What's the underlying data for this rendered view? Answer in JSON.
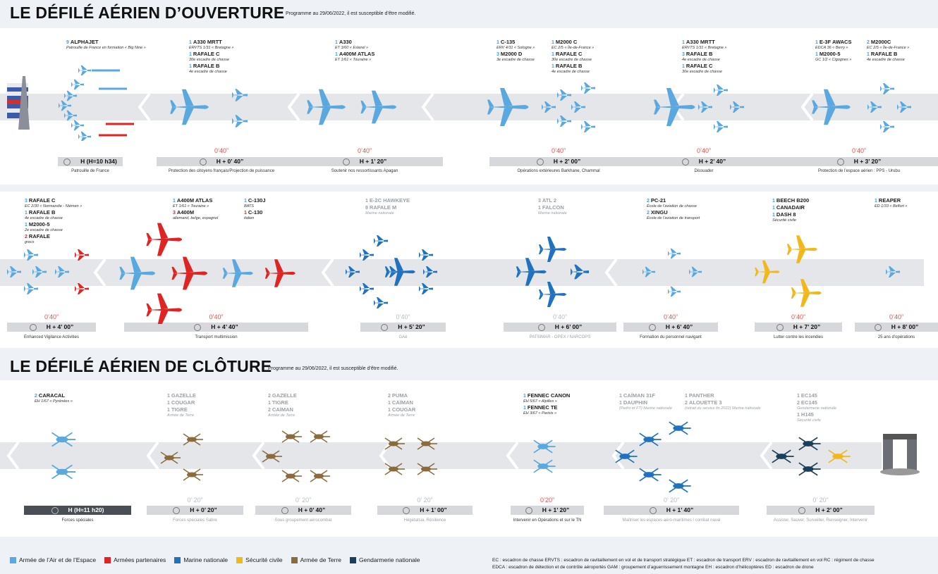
{
  "opening": {
    "title": "LE DÉFILÉ AÉRIEN D’OUVERTURE",
    "note": "Programme au 29/06/2022, il est susceptible d’être modifié."
  },
  "closing": {
    "title": "LE DÉFILÉ AÉRIEN DE CLÔTURE",
    "note": "Programme au 29/06/2022, il est susceptible d’être modifié."
  },
  "colors": {
    "air": "#5aa8e0",
    "partners": "#e02424",
    "navy": "#1f72c0",
    "civil": "#f2b71a",
    "army": "#8b6b3e",
    "gendarmerie": "#1c3e58"
  },
  "row1": [
    {
      "items": [
        {
          "n": "9",
          "name": "ALPHAJET",
          "sub": "Patrouille de France en formation « Big Nine »"
        }
      ],
      "timer": "",
      "h": "H (H=10 h34)",
      "caption": "Patrouille de France",
      "dark": false
    },
    {
      "items": [
        {
          "n": "1",
          "name": "A330 MRTT",
          "sub": "ERVTS 1/31 « Bretagne »"
        },
        {
          "n": "1",
          "name": "RAFALE C",
          "sub": "30e escadre de chasse"
        },
        {
          "n": "1",
          "name": "RAFALE B",
          "sub": "4e escadre de chasse"
        }
      ],
      "timer": "0’40”",
      "h": "H + 0’ 40”",
      "caption": "Protection des citoyens français/Projection de puissance"
    },
    {
      "items": [
        {
          "n": "1",
          "name": "A330",
          "sub": "ET 3/60 « Esterel »"
        },
        {
          "n": "1",
          "name": "A400M ATLAS",
          "sub": "ET 1/61 « Touraine »"
        }
      ],
      "timer": "0’40”",
      "h": "H + 1’ 20”",
      "caption": "Soutenir nos ressortissants Apagan"
    },
    {
      "items": [
        {
          "n": "1",
          "name": "C-135",
          "sub": "ERV 4/31 « Sologne »"
        },
        {
          "n": "3",
          "name": "M2000 D",
          "sub": "3e escadre de chasse"
        }
      ],
      "items2": [
        {
          "n": "1",
          "name": "M2000 C",
          "sub": "EC 2/5 « Île-de-France »"
        },
        {
          "n": "1",
          "name": "RAFALE C",
          "sub": "30e escadre de chasse"
        },
        {
          "n": "1",
          "name": "RAFALE B",
          "sub": "4e escadre de chasse"
        }
      ],
      "timer": "0’40”",
      "h": "H + 2’ 00”",
      "caption": "Opérations extérieures Barkhane, Chammal"
    },
    {
      "items": [
        {
          "n": "1",
          "name": "A330 MRTT",
          "sub": "ERVTS 1/31 « Bretagne »"
        },
        {
          "n": "3",
          "name": "RAFALE B",
          "sub": "4e escadre de chasse"
        },
        {
          "n": "1",
          "name": "RAFALE C",
          "sub": "30e escadre de chasse"
        }
      ],
      "timer": "0’40”",
      "h": "H + 2’ 40”",
      "caption": "Dissuader"
    },
    {
      "items": [
        {
          "n": "1",
          "name": "E-3F AWACS",
          "sub": "EDCA 36 « Berry »"
        },
        {
          "n": "1",
          "name": "M2000-5",
          "sub": "GC 1/2 « Cigognes »"
        }
      ],
      "items2": [
        {
          "n": "2",
          "name": "M2000C",
          "sub": "EC 2/5 « Île-de-France »"
        },
        {
          "n": "1",
          "name": "RAFALE B",
          "sub": "4e escadre de chasse"
        }
      ],
      "timer": "0’40”",
      "h": "H + 3’ 20”",
      "caption": "Protection de l’espace aérien : PPS - Urubu"
    }
  ],
  "row2": [
    {
      "items": [
        {
          "n": "3",
          "name": "RAFALE C",
          "sub": "EC 2/30 « Normandie - Niémen »"
        },
        {
          "n": "1",
          "name": "RAFALE B",
          "sub": "4e escadre de chasse"
        },
        {
          "n": "1",
          "name": "M2000-5",
          "sub": "2e escadre de chasse"
        },
        {
          "n": "2",
          "name": "RAFALE",
          "sub": "grecs",
          "red": true
        }
      ],
      "timer": "0’40”",
      "h": "H + 4’ 00”",
      "caption": "Enhanced Vigilance Activities"
    },
    {
      "items": [
        {
          "n": "1",
          "name": "A400M ATLAS",
          "sub": "ET 1/61 « Touraine »"
        },
        {
          "n": "3",
          "name": "A400M",
          "sub": "allemand, belge, espagnol",
          "red": true
        }
      ],
      "items2": [
        {
          "n": "1",
          "name": "C-130J",
          "sub": "BATS"
        },
        {
          "n": "1",
          "name": "C-130",
          "sub": "italien",
          "red": true
        }
      ],
      "timer": "0’40”",
      "h": "H + 4’ 40”",
      "caption": "Transport multimission"
    },
    {
      "items": [
        {
          "n": "1",
          "name": "E-2C HAWKEYE",
          "sub": ""
        },
        {
          "n": "8",
          "name": "RAFALE M",
          "sub": "Marine nationale"
        }
      ],
      "timer": "0’40”",
      "h": "H + 5’ 20”",
      "caption": "GAé",
      "dim": true
    },
    {
      "items": [
        {
          "n": "3",
          "name": "ATL 2",
          "sub": ""
        },
        {
          "n": "1",
          "name": "FALCON",
          "sub": "Marine nationale"
        }
      ],
      "timer": "0’40”",
      "h": "H + 6’ 00”",
      "caption": "PATSIMAR - OPEX / NARCOPS",
      "dim": true
    },
    {
      "items": [
        {
          "n": "2",
          "name": "PC-21",
          "sub": "École de l’aviation de chasse"
        },
        {
          "n": "2",
          "name": "XINGU",
          "sub": "École de l’aviation de transport"
        }
      ],
      "timer": "0’40”",
      "h": "H + 6’ 40”",
      "caption": "Formation du personnel navigant"
    },
    {
      "items": [
        {
          "n": "1",
          "name": "BEECH B200",
          "sub": ""
        },
        {
          "n": "1",
          "name": "CANADAIR",
          "sub": ""
        },
        {
          "n": "1",
          "name": "DASH 8",
          "sub": "Sécurité civile"
        }
      ],
      "timer": "0’40”",
      "h": "H + 7’ 20”",
      "caption": "Lutter contre les incendies"
    },
    {
      "items": [
        {
          "n": "1",
          "name": "REAPER",
          "sub": "ED 1/33 « Belfort »"
        }
      ],
      "timer": "0’40”",
      "h": "H + 8’ 00”",
      "caption": "25 ans d’opérations"
    }
  ],
  "row3": [
    {
      "items": [
        {
          "n": "2",
          "name": "CARACAL",
          "sub": "EH 1/67 « Pyrénées »"
        }
      ],
      "timer": "",
      "h": "H (H≈11 h20)",
      "caption": "Forces spéciales",
      "dark": true
    },
    {
      "items": [
        {
          "n": "1",
          "name": "GAZELLE",
          "sub": ""
        },
        {
          "n": "1",
          "name": "COUGAR",
          "sub": ""
        },
        {
          "n": "1",
          "name": "TIGRE",
          "sub": "Armée de Terre"
        }
      ],
      "timer": "0’ 20”",
      "h": "H + 0’ 20”",
      "caption": "Forces spéciales Sabre",
      "dim": true
    },
    {
      "items": [
        {
          "n": "2",
          "name": "GAZELLE",
          "sub": ""
        },
        {
          "n": "1",
          "name": "TIGRE",
          "sub": ""
        },
        {
          "n": "2",
          "name": "CAÏMAN",
          "sub": "Armée de Terre"
        }
      ],
      "timer": "0’ 20”",
      "h": "H + 0’ 40”",
      "caption": "Sous groupement aérocombat",
      "dim": true
    },
    {
      "items": [
        {
          "n": "2",
          "name": "PUMA",
          "sub": ""
        },
        {
          "n": "1",
          "name": "CAÏMAN",
          "sub": ""
        },
        {
          "n": "1",
          "name": "COUGAR",
          "sub": "Armée de Terre"
        }
      ],
      "timer": "0’ 20”",
      "h": "H + 1’ 00”",
      "caption": "Hégétatsia, Résilience",
      "dim": true
    },
    {
      "items": [
        {
          "n": "1",
          "name": "FENNEC CANON",
          "sub": "EH 5/67 « Alpilles »"
        },
        {
          "n": "1",
          "name": "FENNEC TE",
          "sub": "EH 3/67 « Parisis »"
        }
      ],
      "timer": "0’20”",
      "h": "H + 1’ 20”",
      "caption": "Intervenir en Opérations et sur le TN"
    },
    {
      "items": [
        {
          "n": "1",
          "name": "CAÏMAN 31F",
          "sub": ""
        },
        {
          "n": "1",
          "name": "DAUPHIN",
          "sub": "(Pedro et FT) Marine nationale"
        }
      ],
      "items2": [
        {
          "n": "1",
          "name": "PANTHER",
          "sub": ""
        },
        {
          "n": "2",
          "name": "ALOUETTE 3",
          "sub": "(retrait du service fin 2022) Marine nationale"
        }
      ],
      "timer": "0’ 20”",
      "h": "H + 1’ 40”",
      "caption": "Maîtriser les espaces aéro-maritimes / combat naval",
      "dim": true
    },
    {
      "items": [
        {
          "n": "1",
          "name": "EC145",
          "sub": ""
        },
        {
          "n": "2",
          "name": "EC145",
          "sub": "Gendarmerie nationale"
        },
        {
          "n": "1",
          "name": "H145",
          "sub": "Sécurité civile"
        }
      ],
      "timer": "0’ 20”",
      "h": "H + 2’ 00”",
      "caption": "Assister, Sauver, Surveiller, Renseigner, Intervenir",
      "dim": true
    }
  ],
  "legend": [
    {
      "label": "Armée de l’Air et de l’Espace",
      "color": "#5aa8e0"
    },
    {
      "label": "Armées partenaires",
      "color": "#e02424"
    },
    {
      "label": "Marine nationale",
      "color": "#1f72c0"
    },
    {
      "label": "Sécurité civile",
      "color": "#f2b71a"
    },
    {
      "label": "Armée de Terre",
      "color": "#8b6b3e"
    },
    {
      "label": "Gendarmerie nationale",
      "color": "#1c3e58"
    }
  ],
  "abbreviations": {
    "line1": "EC : escadron de chasse   ERVTS : escadron de ravitaillement en vol et de transport stratégique   ET : escadron de transport   ERV : escadron de ravitaillement en vol   RC : régiment de chasse",
    "line2": "EDCA : escadron de détection et de contrôle aéroportés   GAM : groupement d’aguerrissement montagne   EH : escadron d’hélicoptères   ED : escadron de drone"
  }
}
